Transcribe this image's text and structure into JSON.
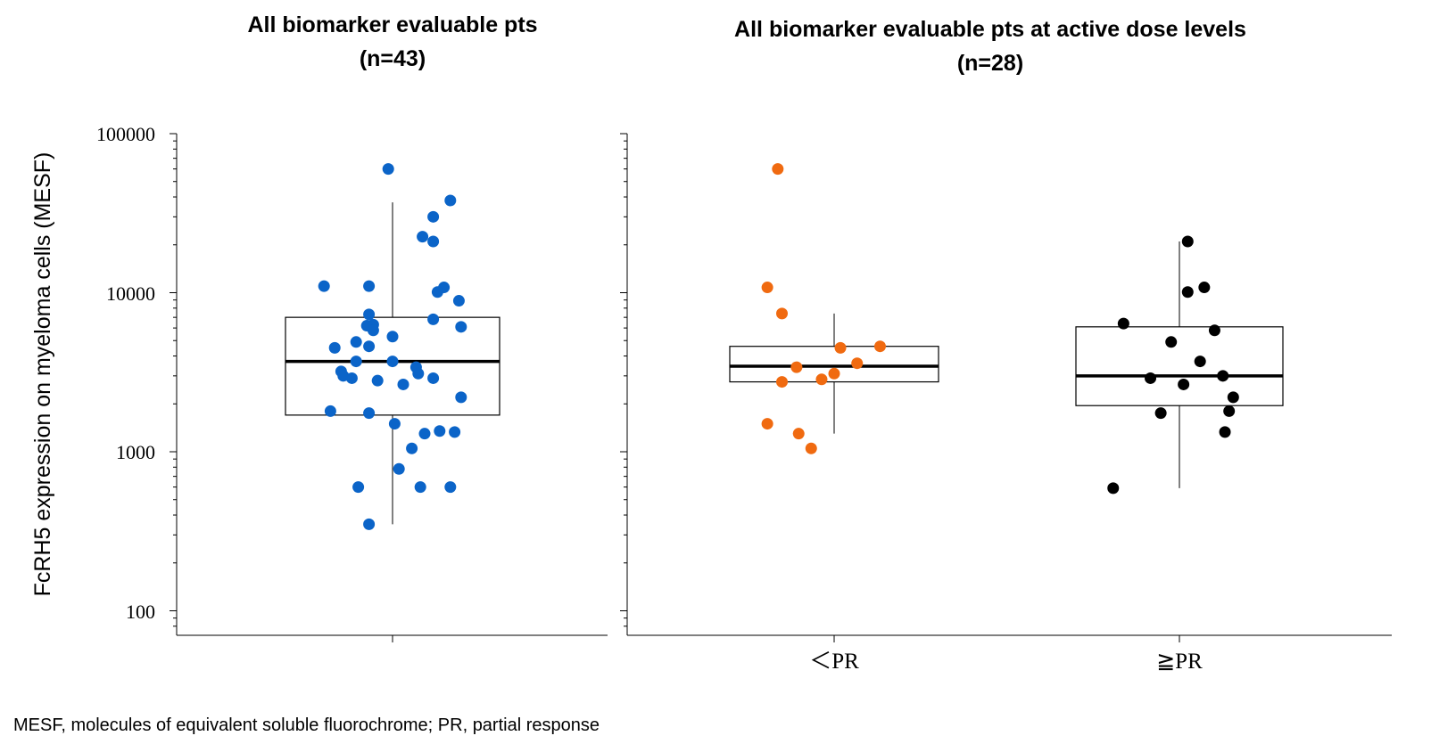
{
  "chart_data": [
    {
      "type": "box",
      "title": "All biomarker evaluable pts",
      "subtitle": "(n=43)",
      "ylabel": "FcRH5 expression on myeloma cells (MESF)",
      "yscale": "log",
      "ylim": [
        70,
        100000
      ],
      "yticks": [
        "100000",
        "10000",
        "1000",
        "100"
      ],
      "grid": false,
      "categories": [
        ""
      ],
      "series": [
        {
          "color": "#0b64c8",
          "box": {
            "q1": 1700,
            "median": 3700,
            "q3": 7000,
            "whisker_low": 350,
            "whisker_high": 37000
          },
          "points": [
            {
              "jitter": -0.02,
              "y": 60000
            },
            {
              "jitter": 0.27,
              "y": 38000
            },
            {
              "jitter": 0.19,
              "y": 30000
            },
            {
              "jitter": 0.14,
              "y": 22500
            },
            {
              "jitter": 0.19,
              "y": 21000
            },
            {
              "jitter": -0.32,
              "y": 11000
            },
            {
              "jitter": -0.11,
              "y": 11000
            },
            {
              "jitter": 0.24,
              "y": 10800
            },
            {
              "jitter": 0.21,
              "y": 10100
            },
            {
              "jitter": 0.31,
              "y": 8900
            },
            {
              "jitter": -0.11,
              "y": 7300
            },
            {
              "jitter": 0.19,
              "y": 6800
            },
            {
              "jitter": -0.09,
              "y": 6300
            },
            {
              "jitter": -0.12,
              "y": 6200
            },
            {
              "jitter": 0.32,
              "y": 6100
            },
            {
              "jitter": -0.09,
              "y": 5800
            },
            {
              "jitter": 0.0,
              "y": 5300
            },
            {
              "jitter": -0.17,
              "y": 4900
            },
            {
              "jitter": -0.11,
              "y": 4600
            },
            {
              "jitter": -0.27,
              "y": 4500
            },
            {
              "jitter": -0.17,
              "y": 3700
            },
            {
              "jitter": 0.0,
              "y": 3700
            },
            {
              "jitter": 0.11,
              "y": 3400
            },
            {
              "jitter": -0.24,
              "y": 3200
            },
            {
              "jitter": 0.12,
              "y": 3100
            },
            {
              "jitter": -0.23,
              "y": 3000
            },
            {
              "jitter": -0.19,
              "y": 2900
            },
            {
              "jitter": 0.19,
              "y": 2900
            },
            {
              "jitter": -0.07,
              "y": 2800
            },
            {
              "jitter": 0.05,
              "y": 2650
            },
            {
              "jitter": 0.32,
              "y": 2200
            },
            {
              "jitter": -0.29,
              "y": 1800
            },
            {
              "jitter": -0.11,
              "y": 1750
            },
            {
              "jitter": 0.01,
              "y": 1500
            },
            {
              "jitter": 0.22,
              "y": 1350
            },
            {
              "jitter": 0.15,
              "y": 1300
            },
            {
              "jitter": 0.29,
              "y": 1330
            },
            {
              "jitter": 0.09,
              "y": 1050
            },
            {
              "jitter": 0.03,
              "y": 780
            },
            {
              "jitter": -0.16,
              "y": 600
            },
            {
              "jitter": 0.13,
              "y": 600
            },
            {
              "jitter": 0.27,
              "y": 600
            },
            {
              "jitter": -0.11,
              "y": 350
            }
          ]
        }
      ]
    },
    {
      "type": "box",
      "title": "All biomarker evaluable pts at active dose levels",
      "subtitle": "(n=28)",
      "yscale": "log",
      "ylim": [
        70,
        100000
      ],
      "grid": false,
      "categories": [
        "＜PR",
        "≧PR"
      ],
      "series": [
        {
          "category": "＜PR",
          "color": "#f06a10",
          "box": {
            "q1": 2750,
            "median": 3450,
            "q3": 4600,
            "whisker_low": 1300,
            "whisker_high": 7400
          },
          "points": [
            {
              "jitter": -0.27,
              "y": 60000
            },
            {
              "jitter": -0.32,
              "y": 10800
            },
            {
              "jitter": -0.25,
              "y": 7400
            },
            {
              "jitter": 0.22,
              "y": 4600
            },
            {
              "jitter": 0.03,
              "y": 4500
            },
            {
              "jitter": 0.11,
              "y": 3600
            },
            {
              "jitter": -0.18,
              "y": 3400
            },
            {
              "jitter": 0.0,
              "y": 3100
            },
            {
              "jitter": -0.06,
              "y": 2850
            },
            {
              "jitter": -0.25,
              "y": 2750
            },
            {
              "jitter": -0.32,
              "y": 1500
            },
            {
              "jitter": -0.17,
              "y": 1300
            },
            {
              "jitter": -0.11,
              "y": 1050
            }
          ]
        },
        {
          "category": "≧PR",
          "color": "#000000",
          "box": {
            "q1": 1950,
            "median": 3000,
            "q3": 6100,
            "whisker_low": 590,
            "whisker_high": 21000
          },
          "points": [
            {
              "jitter": 0.04,
              "y": 21000
            },
            {
              "jitter": 0.12,
              "y": 10800
            },
            {
              "jitter": 0.04,
              "y": 10100
            },
            {
              "jitter": -0.27,
              "y": 6400
            },
            {
              "jitter": 0.17,
              "y": 5800
            },
            {
              "jitter": -0.04,
              "y": 4900
            },
            {
              "jitter": 0.1,
              "y": 3700
            },
            {
              "jitter": 0.21,
              "y": 3000
            },
            {
              "jitter": -0.14,
              "y": 2900
            },
            {
              "jitter": 0.02,
              "y": 2650
            },
            {
              "jitter": 0.26,
              "y": 2200
            },
            {
              "jitter": 0.24,
              "y": 1800
            },
            {
              "jitter": -0.09,
              "y": 1750
            },
            {
              "jitter": 0.22,
              "y": 1330
            },
            {
              "jitter": -0.32,
              "y": 590
            }
          ]
        }
      ]
    }
  ],
  "footnote": "MESF, molecules of equivalent soluble fluorochrome; PR, partial response"
}
